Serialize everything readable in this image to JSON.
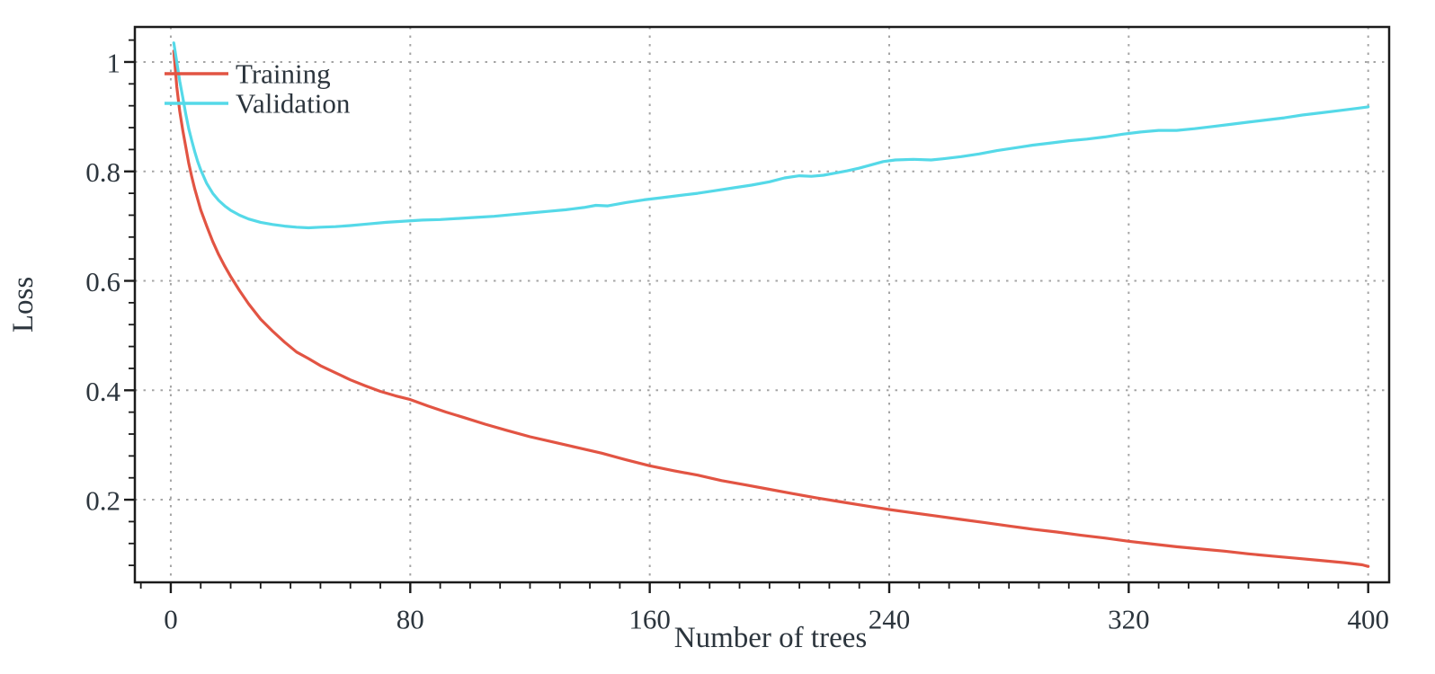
{
  "chart_data": {
    "type": "line",
    "title": "",
    "xlabel": "Number of trees",
    "ylabel": "Loss",
    "xlim": [
      -12,
      407
    ],
    "ylim": [
      0.049,
      1.064
    ],
    "x_major_ticks": [
      0,
      80,
      160,
      240,
      320,
      400
    ],
    "x_tick_labels": [
      "0",
      "80",
      "160",
      "240",
      "320",
      "400"
    ],
    "x_minor_step": 10,
    "y_major_ticks": [
      0.2,
      0.4,
      0.6,
      0.8,
      1.0
    ],
    "y_tick_labels": [
      "0.2",
      "0.4",
      "0.6",
      "0.8",
      "1"
    ],
    "y_minor_step": 0.04,
    "grid": "dotted gray at major ticks",
    "legend_position": "top-left-inside",
    "series": [
      {
        "name": "Training",
        "color": "#e25443",
        "points": [
          [
            1,
            1.02
          ],
          [
            2,
            0.955
          ],
          [
            3,
            0.91
          ],
          [
            4,
            0.875
          ],
          [
            5,
            0.845
          ],
          [
            6,
            0.815
          ],
          [
            7,
            0.79
          ],
          [
            8,
            0.768
          ],
          [
            10,
            0.73
          ],
          [
            12,
            0.7
          ],
          [
            14,
            0.672
          ],
          [
            16,
            0.648
          ],
          [
            18,
            0.627
          ],
          [
            20,
            0.608
          ],
          [
            23,
            0.582
          ],
          [
            26,
            0.558
          ],
          [
            30,
            0.53
          ],
          [
            34,
            0.508
          ],
          [
            38,
            0.488
          ],
          [
            42,
            0.47
          ],
          [
            46,
            0.458
          ],
          [
            50,
            0.445
          ],
          [
            55,
            0.432
          ],
          [
            60,
            0.419
          ],
          [
            65,
            0.408
          ],
          [
            70,
            0.398
          ],
          [
            75,
            0.39
          ],
          [
            80,
            0.383
          ],
          [
            86,
            0.371
          ],
          [
            92,
            0.36
          ],
          [
            98,
            0.35
          ],
          [
            105,
            0.338
          ],
          [
            112,
            0.327
          ],
          [
            120,
            0.315
          ],
          [
            128,
            0.305
          ],
          [
            136,
            0.295
          ],
          [
            144,
            0.285
          ],
          [
            152,
            0.273
          ],
          [
            160,
            0.262
          ],
          [
            168,
            0.253
          ],
          [
            176,
            0.245
          ],
          [
            184,
            0.235
          ],
          [
            192,
            0.227
          ],
          [
            200,
            0.219
          ],
          [
            208,
            0.211
          ],
          [
            216,
            0.203
          ],
          [
            224,
            0.196
          ],
          [
            232,
            0.189
          ],
          [
            240,
            0.182
          ],
          [
            248,
            0.176
          ],
          [
            256,
            0.17
          ],
          [
            264,
            0.164
          ],
          [
            272,
            0.158
          ],
          [
            280,
            0.152
          ],
          [
            288,
            0.146
          ],
          [
            296,
            0.141
          ],
          [
            304,
            0.135
          ],
          [
            312,
            0.13
          ],
          [
            320,
            0.124
          ],
          [
            328,
            0.119
          ],
          [
            336,
            0.114
          ],
          [
            344,
            0.11
          ],
          [
            352,
            0.106
          ],
          [
            360,
            0.101
          ],
          [
            368,
            0.097
          ],
          [
            376,
            0.093
          ],
          [
            384,
            0.089
          ],
          [
            392,
            0.085
          ],
          [
            398,
            0.081
          ],
          [
            400,
            0.078
          ]
        ]
      },
      {
        "name": "Validation",
        "color": "#55d9e8",
        "points": [
          [
            1,
            1.035
          ],
          [
            2,
            1.0
          ],
          [
            3,
            0.965
          ],
          [
            4,
            0.935
          ],
          [
            5,
            0.905
          ],
          [
            6,
            0.878
          ],
          [
            7,
            0.856
          ],
          [
            8,
            0.836
          ],
          [
            9,
            0.818
          ],
          [
            10,
            0.803
          ],
          [
            12,
            0.778
          ],
          [
            14,
            0.76
          ],
          [
            16,
            0.747
          ],
          [
            18,
            0.737
          ],
          [
            20,
            0.729
          ],
          [
            23,
            0.72
          ],
          [
            26,
            0.713
          ],
          [
            30,
            0.707
          ],
          [
            34,
            0.703
          ],
          [
            38,
            0.7
          ],
          [
            42,
            0.698
          ],
          [
            46,
            0.697
          ],
          [
            50,
            0.698
          ],
          [
            55,
            0.699
          ],
          [
            60,
            0.701
          ],
          [
            66,
            0.704
          ],
          [
            72,
            0.707
          ],
          [
            78,
            0.709
          ],
          [
            84,
            0.711
          ],
          [
            90,
            0.712
          ],
          [
            96,
            0.714
          ],
          [
            102,
            0.716
          ],
          [
            108,
            0.718
          ],
          [
            114,
            0.721
          ],
          [
            120,
            0.724
          ],
          [
            126,
            0.727
          ],
          [
            132,
            0.73
          ],
          [
            138,
            0.734
          ],
          [
            142,
            0.738
          ],
          [
            146,
            0.737
          ],
          [
            152,
            0.743
          ],
          [
            158,
            0.748
          ],
          [
            164,
            0.752
          ],
          [
            170,
            0.756
          ],
          [
            176,
            0.76
          ],
          [
            182,
            0.765
          ],
          [
            188,
            0.77
          ],
          [
            194,
            0.775
          ],
          [
            200,
            0.781
          ],
          [
            205,
            0.788
          ],
          [
            210,
            0.792
          ],
          [
            214,
            0.791
          ],
          [
            218,
            0.793
          ],
          [
            222,
            0.797
          ],
          [
            226,
            0.801
          ],
          [
            230,
            0.806
          ],
          [
            234,
            0.812
          ],
          [
            238,
            0.818
          ],
          [
            242,
            0.821
          ],
          [
            248,
            0.822
          ],
          [
            254,
            0.821
          ],
          [
            258,
            0.823
          ],
          [
            264,
            0.827
          ],
          [
            270,
            0.832
          ],
          [
            276,
            0.838
          ],
          [
            282,
            0.843
          ],
          [
            288,
            0.848
          ],
          [
            294,
            0.852
          ],
          [
            300,
            0.856
          ],
          [
            306,
            0.859
          ],
          [
            312,
            0.863
          ],
          [
            318,
            0.868
          ],
          [
            324,
            0.872
          ],
          [
            330,
            0.875
          ],
          [
            336,
            0.875
          ],
          [
            342,
            0.878
          ],
          [
            348,
            0.882
          ],
          [
            354,
            0.886
          ],
          [
            360,
            0.89
          ],
          [
            366,
            0.894
          ],
          [
            372,
            0.898
          ],
          [
            378,
            0.903
          ],
          [
            384,
            0.907
          ],
          [
            390,
            0.911
          ],
          [
            396,
            0.915
          ],
          [
            400,
            0.918
          ]
        ]
      }
    ]
  },
  "styles": {
    "background": "#ffffff",
    "axis_color": "#1b1b1b",
    "grid_color": "#a5a5a5",
    "text_color": "#2c353d",
    "training_color": "#e25443",
    "validation_color": "#55d9e8"
  }
}
